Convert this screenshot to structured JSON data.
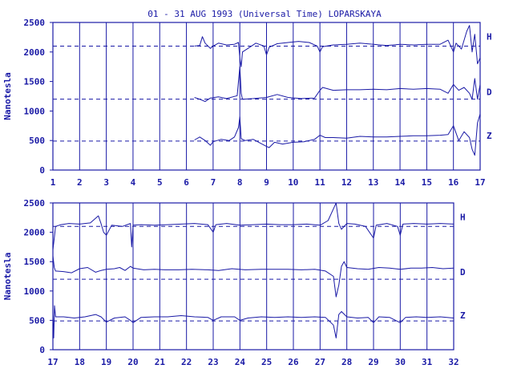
{
  "title": "01 - 31 AUG 1993 (Universal Time) LOPARSKAYA",
  "colors": {
    "ink": "#1a1aa6",
    "background": "#ffffff"
  },
  "chart_data": [
    {
      "type": "line",
      "name": "panel-top",
      "ylabel": "Nanotesla",
      "xlim": [
        1,
        17
      ],
      "ylim": [
        0,
        2500
      ],
      "xticks": [
        "1",
        "2",
        "3",
        "4",
        "5",
        "6",
        "7",
        "8",
        "9",
        "10",
        "11",
        "12",
        "13",
        "14",
        "15",
        "16",
        "17"
      ],
      "yticks": [
        "0",
        "500",
        "1000",
        "1500",
        "2000",
        "2500"
      ],
      "baselines": [
        2100,
        1200,
        490
      ],
      "grid": "vertical",
      "data_start_day": 6.3,
      "series": [
        {
          "name": "H",
          "baseline": 2100,
          "values": [
            [
              6.3,
              2100
            ],
            [
              6.5,
              2110
            ],
            [
              6.6,
              2260
            ],
            [
              6.7,
              2150
            ],
            [
              6.9,
              2060
            ],
            [
              7.0,
              2100
            ],
            [
              7.2,
              2150
            ],
            [
              7.5,
              2120
            ],
            [
              7.8,
              2130
            ],
            [
              7.95,
              2160
            ],
            [
              8.0,
              1900
            ],
            [
              8.05,
              1750
            ],
            [
              8.1,
              2000
            ],
            [
              8.3,
              2060
            ],
            [
              8.6,
              2150
            ],
            [
              8.9,
              2100
            ],
            [
              9.0,
              1950
            ],
            [
              9.1,
              2080
            ],
            [
              9.4,
              2140
            ],
            [
              9.8,
              2160
            ],
            [
              10.2,
              2180
            ],
            [
              10.6,
              2160
            ],
            [
              10.9,
              2100
            ],
            [
              11.0,
              2000
            ],
            [
              11.1,
              2090
            ],
            [
              11.5,
              2120
            ],
            [
              12.0,
              2130
            ],
            [
              12.5,
              2150
            ],
            [
              13.0,
              2130
            ],
            [
              13.5,
              2110
            ],
            [
              14.0,
              2130
            ],
            [
              14.5,
              2120
            ],
            [
              15.0,
              2130
            ],
            [
              15.5,
              2130
            ],
            [
              15.8,
              2200
            ],
            [
              16.0,
              2000
            ],
            [
              16.1,
              2150
            ],
            [
              16.3,
              2050
            ],
            [
              16.5,
              2350
            ],
            [
              16.6,
              2450
            ],
            [
              16.7,
              2000
            ],
            [
              16.8,
              2300
            ],
            [
              16.9,
              1800
            ],
            [
              17.0,
              1900
            ]
          ]
        },
        {
          "name": "D",
          "baseline": 1200,
          "values": [
            [
              6.3,
              1230
            ],
            [
              6.5,
              1200
            ],
            [
              6.7,
              1160
            ],
            [
              6.9,
              1220
            ],
            [
              7.2,
              1240
            ],
            [
              7.5,
              1210
            ],
            [
              7.9,
              1260
            ],
            [
              8.0,
              1750
            ],
            [
              8.05,
              1300
            ],
            [
              8.1,
              1200
            ],
            [
              8.5,
              1210
            ],
            [
              9.0,
              1230
            ],
            [
              9.4,
              1280
            ],
            [
              9.8,
              1230
            ],
            [
              10.3,
              1210
            ],
            [
              10.8,
              1220
            ],
            [
              11.0,
              1350
            ],
            [
              11.1,
              1400
            ],
            [
              11.5,
              1350
            ],
            [
              12.0,
              1360
            ],
            [
              12.5,
              1360
            ],
            [
              13.0,
              1370
            ],
            [
              13.5,
              1360
            ],
            [
              14.0,
              1380
            ],
            [
              14.5,
              1370
            ],
            [
              15.0,
              1380
            ],
            [
              15.5,
              1370
            ],
            [
              15.8,
              1300
            ],
            [
              16.0,
              1450
            ],
            [
              16.2,
              1350
            ],
            [
              16.4,
              1400
            ],
            [
              16.6,
              1300
            ],
            [
              16.7,
              1200
            ],
            [
              16.8,
              1550
            ],
            [
              16.9,
              1200
            ],
            [
              17.0,
              1450
            ]
          ]
        },
        {
          "name": "Z",
          "baseline": 490,
          "values": [
            [
              6.3,
              510
            ],
            [
              6.5,
              560
            ],
            [
              6.7,
              500
            ],
            [
              6.9,
              420
            ],
            [
              7.0,
              480
            ],
            [
              7.3,
              520
            ],
            [
              7.6,
              500
            ],
            [
              7.8,
              560
            ],
            [
              7.95,
              720
            ],
            [
              8.0,
              900
            ],
            [
              8.05,
              530
            ],
            [
              8.2,
              500
            ],
            [
              8.5,
              520
            ],
            [
              9.0,
              400
            ],
            [
              9.1,
              380
            ],
            [
              9.3,
              470
            ],
            [
              9.6,
              440
            ],
            [
              10.0,
              470
            ],
            [
              10.4,
              480
            ],
            [
              10.8,
              520
            ],
            [
              11.0,
              590
            ],
            [
              11.2,
              550
            ],
            [
              11.5,
              550
            ],
            [
              12.0,
              540
            ],
            [
              12.5,
              570
            ],
            [
              13.0,
              560
            ],
            [
              13.5,
              560
            ],
            [
              14.0,
              570
            ],
            [
              14.5,
              580
            ],
            [
              15.0,
              580
            ],
            [
              15.5,
              590
            ],
            [
              15.8,
              600
            ],
            [
              16.0,
              750
            ],
            [
              16.2,
              500
            ],
            [
              16.4,
              650
            ],
            [
              16.6,
              550
            ],
            [
              16.7,
              350
            ],
            [
              16.8,
              250
            ],
            [
              16.9,
              800
            ],
            [
              17.0,
              950
            ]
          ]
        }
      ]
    },
    {
      "type": "line",
      "name": "panel-bottom",
      "ylabel": "Nanotesla",
      "xlim": [
        17,
        32
      ],
      "ylim": [
        0,
        2500
      ],
      "xticks": [
        "17",
        "18",
        "19",
        "20",
        "21",
        "22",
        "23",
        "24",
        "25",
        "26",
        "27",
        "28",
        "29",
        "30",
        "31",
        "32"
      ],
      "yticks": [
        "0",
        "500",
        "1000",
        "1500",
        "2000",
        "2500"
      ],
      "baselines": [
        2100,
        1200,
        490
      ],
      "grid": "vertical",
      "data_start_day": 17.0,
      "series": [
        {
          "name": "H",
          "baseline": 2100,
          "values": [
            [
              17.0,
              1700
            ],
            [
              17.05,
              1900
            ],
            [
              17.1,
              2100
            ],
            [
              17.3,
              2130
            ],
            [
              17.6,
              2150
            ],
            [
              18.0,
              2140
            ],
            [
              18.4,
              2160
            ],
            [
              18.7,
              2280
            ],
            [
              18.8,
              2150
            ],
            [
              18.9,
              2000
            ],
            [
              19.0,
              1950
            ],
            [
              19.2,
              2120
            ],
            [
              19.6,
              2100
            ],
            [
              19.9,
              2150
            ],
            [
              19.95,
              1750
            ],
            [
              20.0,
              2120
            ],
            [
              20.3,
              2130
            ],
            [
              20.8,
              2120
            ],
            [
              21.3,
              2130
            ],
            [
              21.8,
              2140
            ],
            [
              22.3,
              2150
            ],
            [
              22.8,
              2130
            ],
            [
              23.0,
              2000
            ],
            [
              23.1,
              2130
            ],
            [
              23.5,
              2150
            ],
            [
              24.0,
              2120
            ],
            [
              24.5,
              2130
            ],
            [
              25.0,
              2140
            ],
            [
              25.5,
              2130
            ],
            [
              26.0,
              2130
            ],
            [
              26.5,
              2140
            ],
            [
              27.0,
              2120
            ],
            [
              27.3,
              2200
            ],
            [
              27.5,
              2400
            ],
            [
              27.6,
              2500
            ],
            [
              27.7,
              2150
            ],
            [
              27.8,
              2050
            ],
            [
              28.0,
              2150
            ],
            [
              28.3,
              2140
            ],
            [
              28.7,
              2100
            ],
            [
              29.0,
              1900
            ],
            [
              29.1,
              2120
            ],
            [
              29.5,
              2150
            ],
            [
              29.9,
              2100
            ],
            [
              30.0,
              1950
            ],
            [
              30.1,
              2140
            ],
            [
              30.5,
              2150
            ],
            [
              31.0,
              2140
            ],
            [
              31.5,
              2150
            ],
            [
              32.0,
              2140
            ]
          ]
        },
        {
          "name": "D",
          "baseline": 1200,
          "values": [
            [
              17.0,
              1600
            ],
            [
              17.05,
              1400
            ],
            [
              17.1,
              1340
            ],
            [
              17.4,
              1330
            ],
            [
              17.7,
              1310
            ],
            [
              18.0,
              1380
            ],
            [
              18.3,
              1400
            ],
            [
              18.6,
              1320
            ],
            [
              18.8,
              1350
            ],
            [
              19.0,
              1370
            ],
            [
              19.3,
              1380
            ],
            [
              19.5,
              1400
            ],
            [
              19.7,
              1350
            ],
            [
              19.9,
              1420
            ],
            [
              20.0,
              1390
            ],
            [
              20.4,
              1360
            ],
            [
              20.8,
              1370
            ],
            [
              21.2,
              1360
            ],
            [
              21.7,
              1360
            ],
            [
              22.2,
              1370
            ],
            [
              22.8,
              1360
            ],
            [
              23.2,
              1350
            ],
            [
              23.7,
              1380
            ],
            [
              24.2,
              1360
            ],
            [
              24.8,
              1370
            ],
            [
              25.3,
              1370
            ],
            [
              25.8,
              1370
            ],
            [
              26.3,
              1360
            ],
            [
              26.8,
              1370
            ],
            [
              27.2,
              1340
            ],
            [
              27.5,
              1250
            ],
            [
              27.6,
              900
            ],
            [
              27.7,
              1100
            ],
            [
              27.8,
              1420
            ],
            [
              27.9,
              1500
            ],
            [
              28.0,
              1400
            ],
            [
              28.4,
              1380
            ],
            [
              28.8,
              1370
            ],
            [
              29.2,
              1400
            ],
            [
              29.6,
              1390
            ],
            [
              30.0,
              1370
            ],
            [
              30.4,
              1390
            ],
            [
              30.8,
              1390
            ],
            [
              31.2,
              1400
            ],
            [
              31.6,
              1380
            ],
            [
              32.0,
              1390
            ]
          ]
        },
        {
          "name": "Z",
          "baseline": 490,
          "values": [
            [
              17.0,
              600
            ],
            [
              17.03,
              200
            ],
            [
              17.06,
              750
            ],
            [
              17.1,
              560
            ],
            [
              17.4,
              560
            ],
            [
              17.8,
              540
            ],
            [
              18.2,
              560
            ],
            [
              18.6,
              600
            ],
            [
              18.8,
              560
            ],
            [
              19.0,
              470
            ],
            [
              19.3,
              540
            ],
            [
              19.7,
              560
            ],
            [
              19.9,
              500
            ],
            [
              20.0,
              460
            ],
            [
              20.3,
              550
            ],
            [
              20.8,
              560
            ],
            [
              21.3,
              560
            ],
            [
              21.8,
              580
            ],
            [
              22.3,
              560
            ],
            [
              22.8,
              550
            ],
            [
              23.0,
              500
            ],
            [
              23.3,
              560
            ],
            [
              23.8,
              560
            ],
            [
              24.0,
              500
            ],
            [
              24.3,
              540
            ],
            [
              24.8,
              560
            ],
            [
              25.3,
              550
            ],
            [
              25.8,
              560
            ],
            [
              26.3,
              550
            ],
            [
              26.8,
              560
            ],
            [
              27.2,
              550
            ],
            [
              27.5,
              420
            ],
            [
              27.6,
              200
            ],
            [
              27.7,
              600
            ],
            [
              27.8,
              650
            ],
            [
              28.0,
              560
            ],
            [
              28.4,
              540
            ],
            [
              28.8,
              550
            ],
            [
              29.0,
              460
            ],
            [
              29.2,
              560
            ],
            [
              29.6,
              550
            ],
            [
              30.0,
              460
            ],
            [
              30.2,
              550
            ],
            [
              30.6,
              560
            ],
            [
              31.0,
              550
            ],
            [
              31.5,
              560
            ],
            [
              32.0,
              540
            ]
          ]
        }
      ]
    }
  ]
}
